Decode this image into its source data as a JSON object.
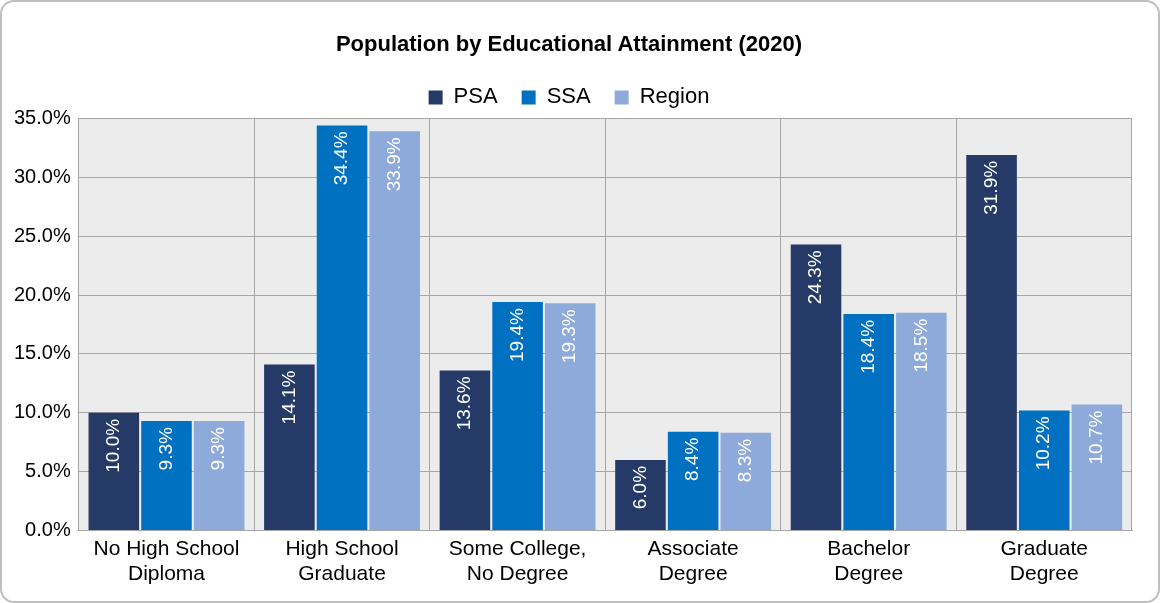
{
  "chart_data": {
    "type": "bar",
    "title": "Population by Educational Attainment (2020)",
    "categories": [
      "No High School Diploma",
      "High School Graduate",
      "Some College, No Degree",
      "Associate Degree",
      "Bachelor Degree",
      "Graduate Degree"
    ],
    "series": [
      {
        "name": "PSA",
        "color": "#253a66",
        "values": [
          10.0,
          14.1,
          13.6,
          6.0,
          24.3,
          31.9
        ],
        "value_labels": [
          "10.0%",
          "14.1%",
          "13.6%",
          "6.0%",
          "24.3%",
          "31.9%"
        ]
      },
      {
        "name": "SSA",
        "color": "#0070c0",
        "values": [
          9.3,
          34.4,
          19.4,
          8.4,
          18.4,
          10.2
        ],
        "value_labels": [
          "9.3%",
          "34.4%",
          "19.4%",
          "8.4%",
          "18.4%",
          "10.2%"
        ]
      },
      {
        "name": "Region",
        "color": "#8eaadb",
        "values": [
          9.3,
          33.9,
          19.3,
          8.3,
          18.5,
          10.7
        ],
        "value_labels": [
          "9.3%",
          "33.9%",
          "19.3%",
          "8.3%",
          "18.5%",
          "10.7%"
        ]
      }
    ],
    "ylim": [
      0,
      35
    ],
    "yticks": [
      {
        "value": 0,
        "label": "0.0%"
      },
      {
        "value": 5,
        "label": "5.0%"
      },
      {
        "value": 10,
        "label": "10.0%"
      },
      {
        "value": 15,
        "label": "15.0%"
      },
      {
        "value": 20,
        "label": "20.0%"
      },
      {
        "value": 25,
        "label": "25.0%"
      },
      {
        "value": 30,
        "label": "30.0%"
      },
      {
        "value": 35,
        "label": "35.0%"
      }
    ],
    "grid": true,
    "legend": "top"
  }
}
